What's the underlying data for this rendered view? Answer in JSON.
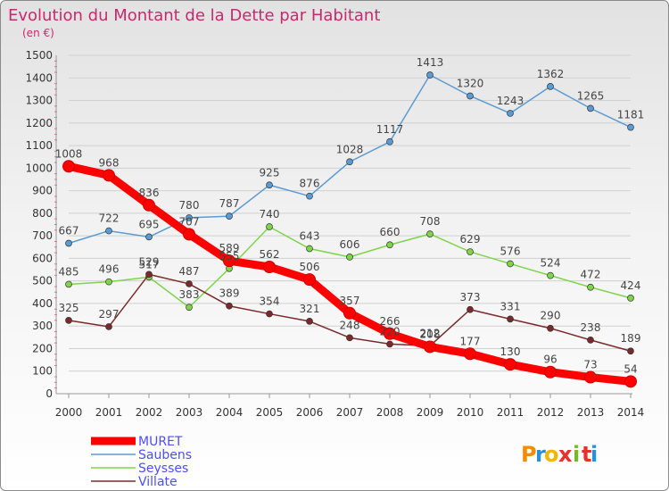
{
  "title": "Evolution du Montant de la Dette par Habitant",
  "subtitle": "(en €)",
  "logo": {
    "letters": [
      "P",
      "r",
      "o",
      "x",
      "i",
      "t",
      "i"
    ],
    "colors": [
      "#f28c00",
      "#2c8fd6",
      "#f2b600",
      "#e8312a",
      "#7ab728",
      "#e8312a",
      "#2c8fd6"
    ]
  },
  "chart_data": {
    "type": "line",
    "x": [
      "2000",
      "2001",
      "2002",
      "2003",
      "2004",
      "2005",
      "2006",
      "2007",
      "2008",
      "2009",
      "2010",
      "2011",
      "2012",
      "2013",
      "2014"
    ],
    "ylim": [
      0,
      1500
    ],
    "yticks": [
      "0",
      "100",
      "200",
      "300",
      "400",
      "500",
      "600",
      "700",
      "800",
      "900",
      "1000",
      "1100",
      "1200",
      "1300",
      "1400",
      "1500"
    ],
    "grid": "horizontal",
    "legend_position": "bottom-left",
    "series": [
      {
        "name": "MURET",
        "color": "#ff0000",
        "values": [
          1008,
          968,
          836,
          707,
          589,
          562,
          506,
          357,
          266,
          208,
          177,
          130,
          96,
          73,
          54
        ]
      },
      {
        "name": "Saubens",
        "color": "#5a9bd4",
        "values": [
          667,
          722,
          695,
          780,
          787,
          925,
          876,
          1028,
          1117,
          1413,
          1320,
          1243,
          1362,
          1265,
          1181
        ]
      },
      {
        "name": "Seysses",
        "color": "#7fd44c",
        "values": [
          485,
          496,
          517,
          383,
          555,
          740,
          643,
          606,
          660,
          708,
          629,
          576,
          524,
          472,
          424
        ]
      },
      {
        "name": "Villate",
        "color": "#7a2a2a",
        "values": [
          325,
          297,
          529,
          487,
          389,
          354,
          321,
          248,
          220,
          212,
          373,
          331,
          290,
          238,
          189
        ]
      }
    ]
  }
}
